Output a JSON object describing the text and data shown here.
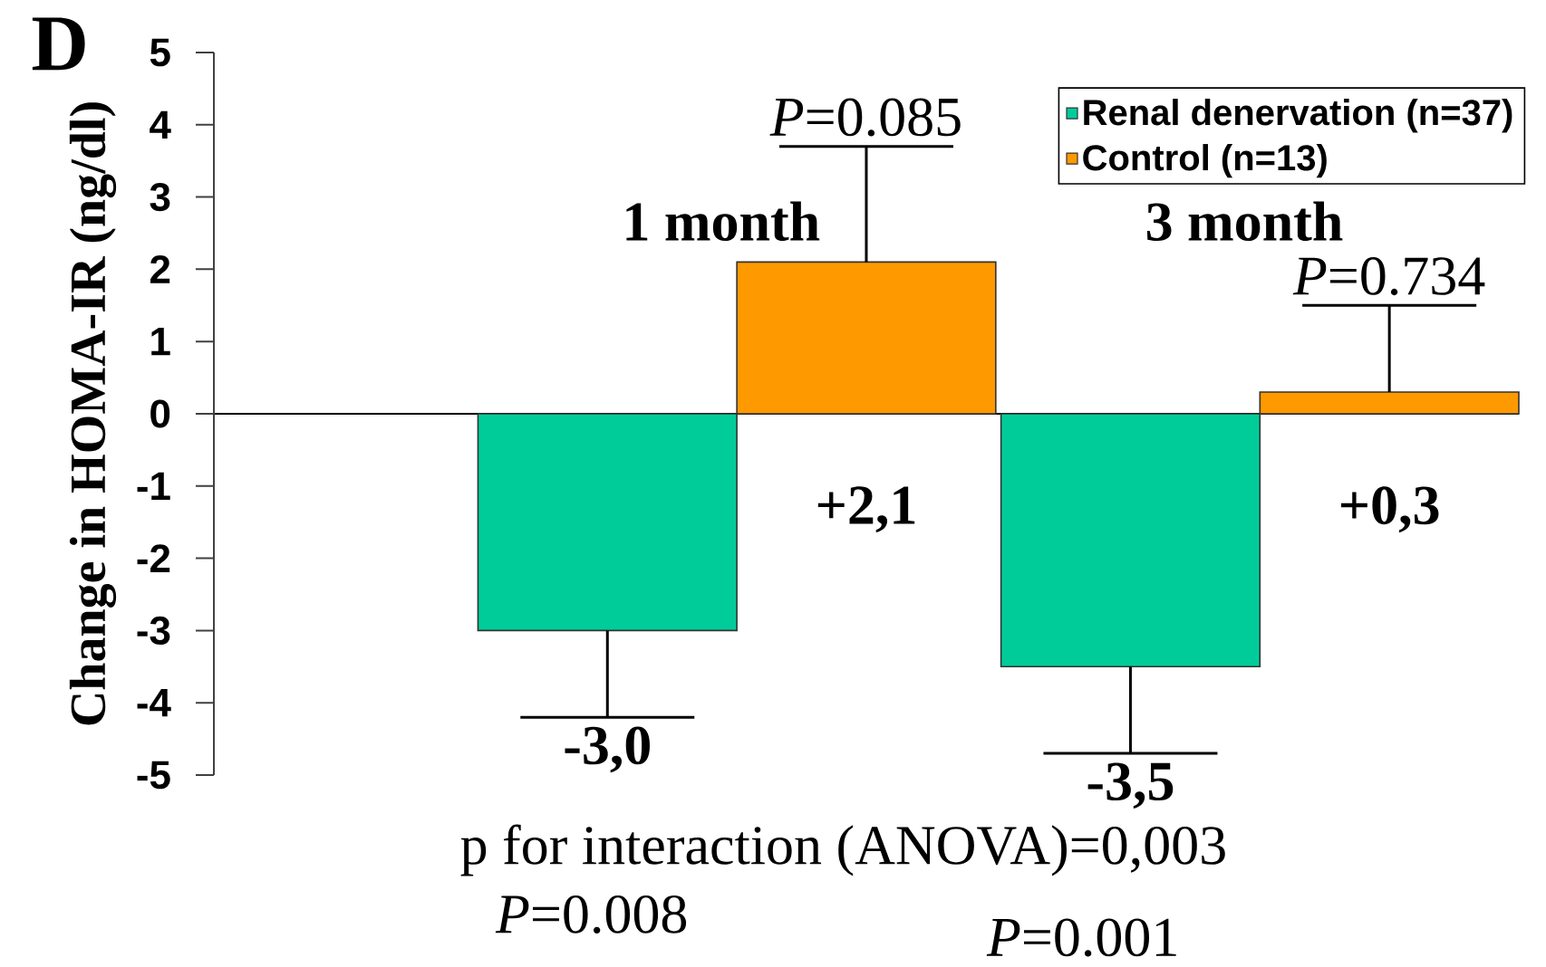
{
  "chart_data": {
    "type": "bar",
    "ylabel": "Change in HOMA-IR (ng/dl)",
    "categories": [
      "1 month",
      "3 month"
    ],
    "series": [
      {
        "name": "Renal denervation (n=37)",
        "color": "#00cc99",
        "values": [
          -3.0,
          -3.5
        ],
        "errors": [
          [
            -4.2,
            -3.0
          ],
          [
            -4.7,
            -3.5
          ]
        ],
        "value_labels": [
          "-3,0",
          "-3,5"
        ]
      },
      {
        "name": "Control (n=13)",
        "color": "#ff9900",
        "values": [
          2.1,
          0.3
        ],
        "errors": [
          [
            2.1,
            3.7
          ],
          [
            0.3,
            1.5
          ]
        ],
        "value_labels": [
          "+2,1",
          "+0,3"
        ]
      }
    ],
    "ylim": [
      -5,
      5
    ],
    "yticks": [
      -5,
      -4,
      -3,
      -2,
      -1,
      0,
      1,
      2,
      3,
      4,
      5
    ],
    "legend": "top right",
    "annotations": [
      "D",
      "*P*=0.085",
      "*P*=0.734",
      "p for interaction (ANOVA)=0,003",
      "*P*=0.008",
      "*P*=0.001"
    ]
  }
}
